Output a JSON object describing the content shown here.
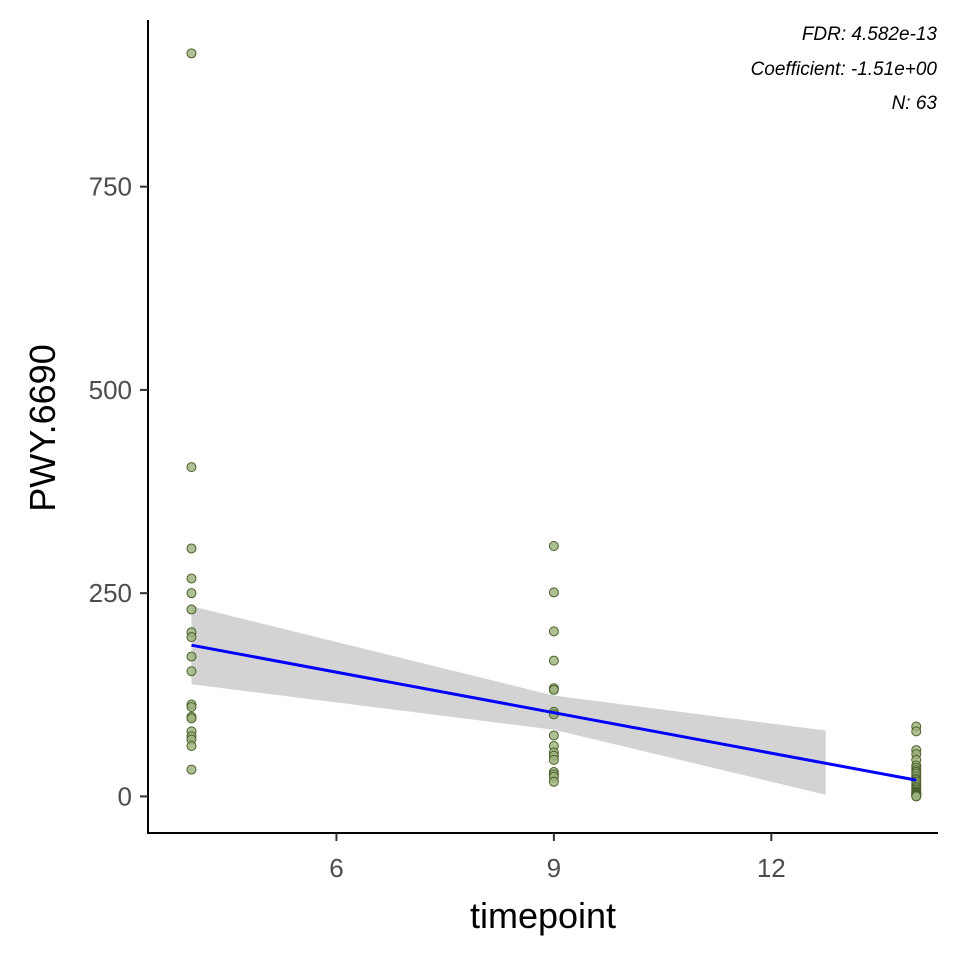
{
  "chart_data": {
    "type": "scatter",
    "xlabel": "timepoint",
    "ylabel": "PWY.6690",
    "xlim": [
      3.4,
      14.3
    ],
    "ylim": [
      -45,
      955
    ],
    "x_ticks": [
      6,
      9,
      12
    ],
    "y_ticks": [
      0,
      250,
      500,
      750
    ],
    "grid": false,
    "annotations": [
      "FDR: 4.582e-13",
      "Coefficient: -1.51e+00",
      "N: 63"
    ],
    "colors": {
      "point_fill": "#9bb07a",
      "point_stroke": "#4a5e2a",
      "fit_line": "#0000ff",
      "ribbon": "#d3d3d3",
      "axis": "#000000"
    },
    "points": [
      {
        "x": 4,
        "y": 914
      },
      {
        "x": 4,
        "y": 405
      },
      {
        "x": 4,
        "y": 305
      },
      {
        "x": 4,
        "y": 268
      },
      {
        "x": 4,
        "y": 250
      },
      {
        "x": 4,
        "y": 230
      },
      {
        "x": 4,
        "y": 202
      },
      {
        "x": 4,
        "y": 196
      },
      {
        "x": 4,
        "y": 172
      },
      {
        "x": 4,
        "y": 154
      },
      {
        "x": 4,
        "y": 113
      },
      {
        "x": 4,
        "y": 110
      },
      {
        "x": 4,
        "y": 98
      },
      {
        "x": 4,
        "y": 96
      },
      {
        "x": 4,
        "y": 80
      },
      {
        "x": 4,
        "y": 74
      },
      {
        "x": 4,
        "y": 70
      },
      {
        "x": 4,
        "y": 62
      },
      {
        "x": 4,
        "y": 33
      },
      {
        "x": 9,
        "y": 308
      },
      {
        "x": 9,
        "y": 251
      },
      {
        "x": 9,
        "y": 203
      },
      {
        "x": 9,
        "y": 167
      },
      {
        "x": 9,
        "y": 133
      },
      {
        "x": 9,
        "y": 131
      },
      {
        "x": 9,
        "y": 104
      },
      {
        "x": 9,
        "y": 101
      },
      {
        "x": 9,
        "y": 75
      },
      {
        "x": 9,
        "y": 62
      },
      {
        "x": 9,
        "y": 54
      },
      {
        "x": 9,
        "y": 50
      },
      {
        "x": 9,
        "y": 45
      },
      {
        "x": 9,
        "y": 30
      },
      {
        "x": 9,
        "y": 27
      },
      {
        "x": 9,
        "y": 24
      },
      {
        "x": 9,
        "y": 18
      },
      {
        "x": 14,
        "y": 86
      },
      {
        "x": 14,
        "y": 80
      },
      {
        "x": 14,
        "y": 57
      },
      {
        "x": 14,
        "y": 52
      },
      {
        "x": 14,
        "y": 45
      },
      {
        "x": 14,
        "y": 38
      },
      {
        "x": 14,
        "y": 35
      },
      {
        "x": 14,
        "y": 32
      },
      {
        "x": 14,
        "y": 30
      },
      {
        "x": 14,
        "y": 28
      },
      {
        "x": 14,
        "y": 25
      },
      {
        "x": 14,
        "y": 22
      },
      {
        "x": 14,
        "y": 20
      },
      {
        "x": 14,
        "y": 18
      },
      {
        "x": 14,
        "y": 15
      },
      {
        "x": 14,
        "y": 12
      },
      {
        "x": 14,
        "y": 10
      },
      {
        "x": 14,
        "y": 8
      },
      {
        "x": 14,
        "y": 6
      },
      {
        "x": 14,
        "y": 5
      },
      {
        "x": 14,
        "y": 4
      },
      {
        "x": 14,
        "y": 3
      },
      {
        "x": 14,
        "y": 2
      },
      {
        "x": 14,
        "y": 1
      },
      {
        "x": 14,
        "y": 0.5
      },
      {
        "x": 14,
        "y": 0.3
      },
      {
        "x": 14,
        "y": 0
      }
    ],
    "fit_line": [
      {
        "x": 4,
        "y": 186
      },
      {
        "x": 9,
        "y": 103
      },
      {
        "x": 14,
        "y": 20
      }
    ],
    "confidence_band": [
      {
        "x": 4,
        "lower": 138,
        "upper": 234
      },
      {
        "x": 9,
        "lower": 82,
        "upper": 124
      },
      {
        "x": 12.75,
        "lower": 2,
        "upper": 81
      }
    ]
  }
}
